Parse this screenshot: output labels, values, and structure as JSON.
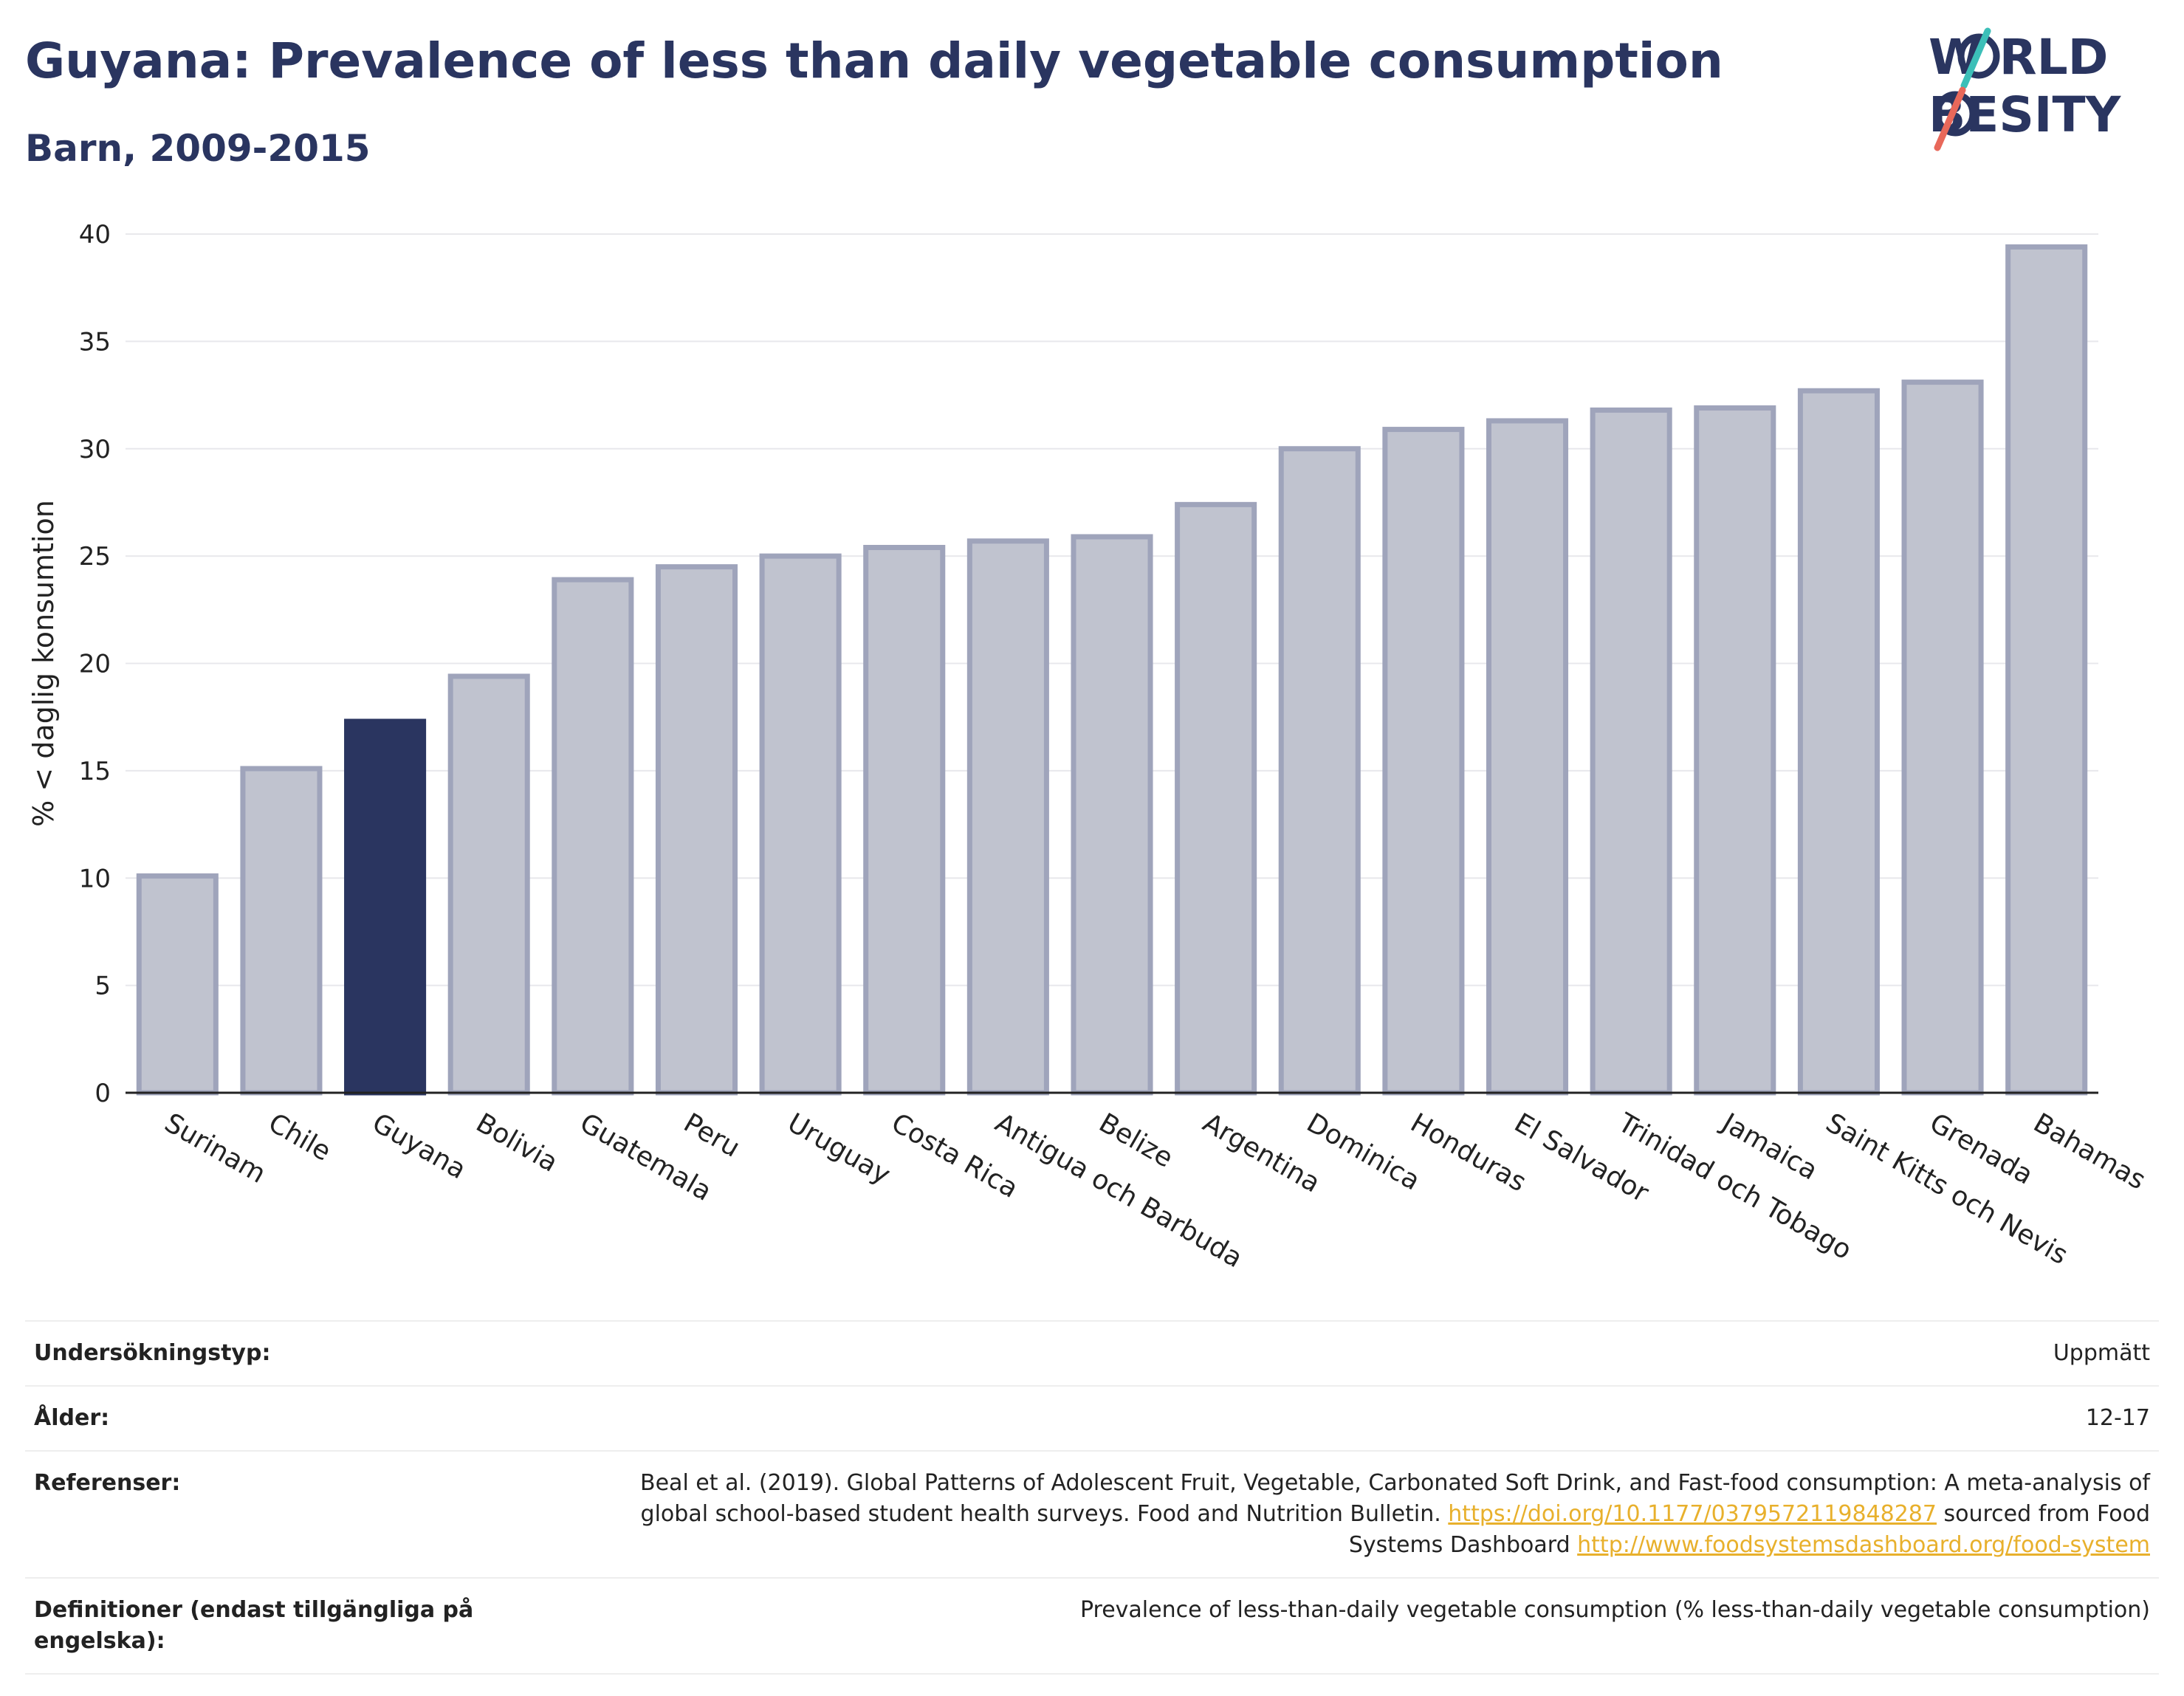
{
  "header": {
    "title": "Guyana: Prevalence of less than daily vegetable consumption",
    "subtitle": "Barn, 2009-2015"
  },
  "logo": {
    "line1": "W  RLD",
    "line2": "  BESITY",
    "accent_colors": [
      "#3cbfb8",
      "#e8685a"
    ]
  },
  "chart_data": {
    "type": "bar",
    "categories": [
      "Surinam",
      "Chile",
      "Guyana",
      "Bolivia",
      "Guatemala",
      "Peru",
      "Uruguay",
      "Costa Rica",
      "Antigua och Barbuda",
      "Belize",
      "Argentina",
      "Dominica",
      "Honduras",
      "El Salvador",
      "Trinidad och Tobago",
      "Jamaica",
      "Saint Kitts och Nevis",
      "Grenada",
      "Bahamas"
    ],
    "values": [
      10.1,
      15.1,
      17.3,
      19.4,
      23.9,
      24.5,
      25.0,
      25.4,
      25.7,
      25.9,
      27.4,
      30.0,
      30.9,
      31.3,
      31.8,
      31.9,
      32.7,
      33.1,
      39.4
    ],
    "highlight": "Guyana",
    "ylabel": "% < daglig konsumtion",
    "xlabel": "",
    "ylim": [
      0,
      40
    ],
    "yticks": [
      0,
      5,
      10,
      15,
      20,
      25,
      30,
      35,
      40
    ],
    "grid": true,
    "colors": {
      "bar": "#c0c3cf",
      "bar_edge": "#9fa4bb",
      "highlight": "#2a3560",
      "grid": "#e8e8ec",
      "axis": "#222222"
    }
  },
  "meta": {
    "survey_type_label": "Undersökningstyp:",
    "survey_type_value": "Uppmätt",
    "age_label": "Ålder:",
    "age_value": "12-17",
    "references_label": "Referenser:",
    "references_text1": "Beal et al. (2019). Global Patterns of Adolescent Fruit, Vegetable, Carbonated Soft Drink, and Fast-food consumption: A meta-analysis of global school-based student health surveys. Food and Nutrition Bulletin. ",
    "references_link1": "https://doi.org/10.1177/0379572119848287",
    "references_text2": " sourced from Food Systems Dashboard ",
    "references_link2": "http://www.foodsystemsdashboard.org/food-system",
    "definitions_label": "Definitioner (endast tillgängliga på engelska):",
    "definitions_value": "Prevalence of less-than-daily vegetable consumption (% less-than-daily vegetable consumption)"
  }
}
